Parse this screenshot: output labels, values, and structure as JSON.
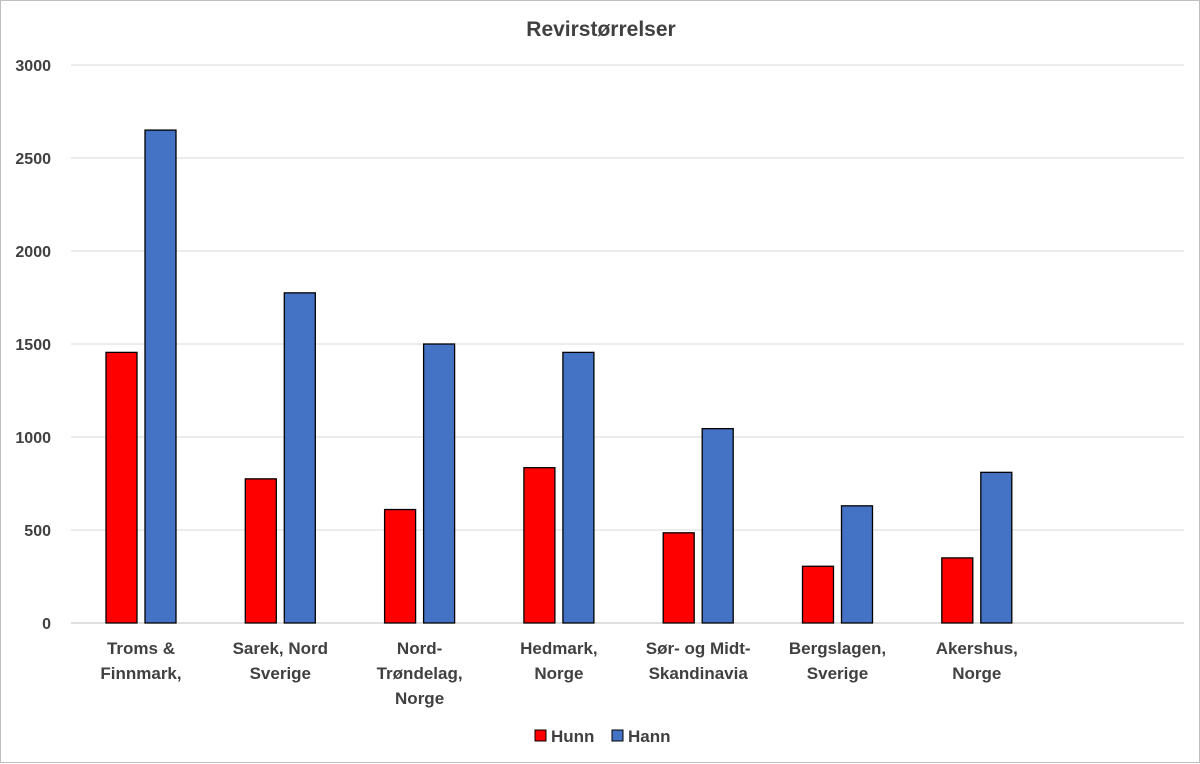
{
  "chart_data": {
    "type": "bar",
    "title": "Revirstørrelser",
    "categories": [
      [
        "Troms &",
        "Finnmark,"
      ],
      [
        "Sarek, Nord",
        "Sverige"
      ],
      [
        "Nord-",
        "Trøndelag,",
        "Norge"
      ],
      [
        "Hedmark,",
        "Norge"
      ],
      [
        "Sør- og Midt-",
        "Skandinavia"
      ],
      [
        "Bergslagen,",
        "Sverige"
      ],
      [
        "Akershus,",
        "Norge"
      ]
    ],
    "series": [
      {
        "name": "Hunn",
        "color": "#ff0000",
        "values": [
          1455,
          775,
          610,
          835,
          485,
          305,
          350
        ]
      },
      {
        "name": "Hann",
        "color": "#4472c4",
        "values": [
          2650,
          1775,
          1500,
          1455,
          1045,
          630,
          810
        ]
      }
    ],
    "ylim": [
      0,
      3000
    ],
    "yticks": [
      0,
      500,
      1000,
      1500,
      2000,
      2500,
      3000
    ],
    "grid": true,
    "legend_position": "bottom",
    "xlabel": "",
    "ylabel": ""
  }
}
